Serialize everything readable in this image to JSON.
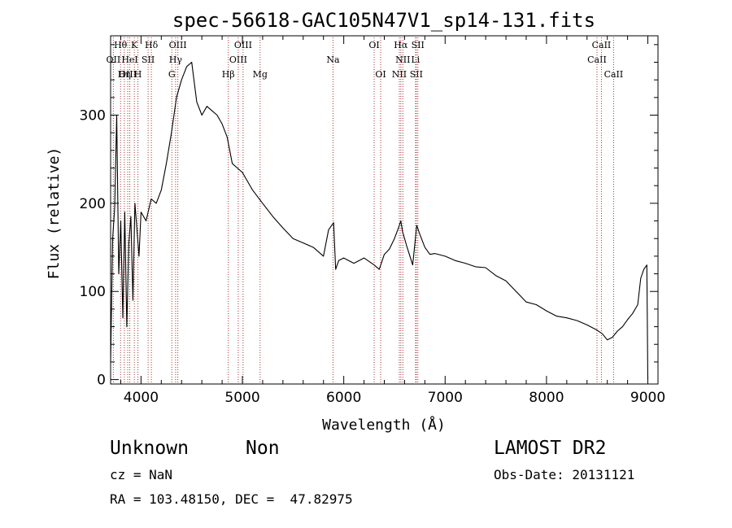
{
  "header": {
    "title": "spec-56618-GAC105N47V1_sp14-131.fits"
  },
  "chart_data": {
    "type": "line",
    "title": "spec-56618-GAC105N47V1_sp14-131.fits",
    "xlabel": "Wavelength (Å)",
    "ylabel": "Flux (relative)",
    "xlim": [
      3700,
      9100
    ],
    "ylim": [
      -5,
      390
    ],
    "x_ticks": [
      4000,
      5000,
      6000,
      7000,
      8000,
      9000
    ],
    "y_ticks": [
      0,
      100,
      200,
      300
    ],
    "grid": false,
    "series": [
      {
        "x": [
          3700,
          3720,
          3740,
          3760,
          3780,
          3800,
          3820,
          3840,
          3860,
          3880,
          3900,
          3920,
          3940,
          3960,
          3980,
          4000,
          4050,
          4100,
          4150,
          4200,
          4250,
          4300,
          4350,
          4400,
          4450,
          4500,
          4550,
          4600,
          4650,
          4700,
          4750,
          4800,
          4850,
          4900,
          4950,
          5000,
          5100,
          5200,
          5300,
          5400,
          5500,
          5600,
          5700,
          5800,
          5850,
          5900,
          5920,
          5950,
          6000,
          6100,
          6200,
          6300,
          6350,
          6400,
          6450,
          6500,
          6540,
          6563,
          6580,
          6620,
          6680,
          6720,
          6750,
          6800,
          6850,
          6900,
          7000,
          7100,
          7200,
          7300,
          7400,
          7500,
          7600,
          7700,
          7800,
          7900,
          8000,
          8100,
          8200,
          8300,
          8400,
          8500,
          8550,
          8600,
          8650,
          8700,
          8750,
          8800,
          8850,
          8900,
          8930,
          8960,
          8990,
          9000
        ],
        "y": [
          20,
          160,
          195,
          300,
          120,
          180,
          70,
          190,
          60,
          155,
          185,
          90,
          200,
          170,
          140,
          190,
          180,
          205,
          200,
          215,
          245,
          280,
          320,
          340,
          355,
          360,
          315,
          300,
          310,
          305,
          300,
          290,
          275,
          245,
          240,
          235,
          215,
          200,
          185,
          172,
          160,
          155,
          150,
          140,
          170,
          178,
          125,
          135,
          138,
          132,
          138,
          130,
          125,
          142,
          148,
          160,
          172,
          180,
          168,
          152,
          130,
          175,
          165,
          150,
          142,
          143,
          140,
          135,
          132,
          128,
          127,
          118,
          112,
          100,
          88,
          85,
          78,
          72,
          70,
          67,
          62,
          56,
          52,
          45,
          48,
          55,
          60,
          68,
          75,
          85,
          115,
          125,
          130,
          0
        ]
      }
    ],
    "lines": [
      {
        "label": "Hθ",
        "x": 3798,
        "row": 0
      },
      {
        "label": "OII",
        "x": 3727,
        "row": 1
      },
      {
        "label": "OIII",
        "x": 3869,
        "row": 2
      },
      {
        "label": "Hη",
        "x": 3835,
        "row": 2
      },
      {
        "label": "K",
        "x": 3934,
        "row": 0
      },
      {
        "label": "H",
        "x": 3969,
        "row": 2
      },
      {
        "label": "HeI",
        "x": 3889,
        "row": 1
      },
      {
        "label": "SII",
        "x": 4070,
        "row": 1
      },
      {
        "label": "Hδ",
        "x": 4102,
        "row": 0
      },
      {
        "label": "G",
        "x": 4304,
        "row": 2
      },
      {
        "label": "Hγ",
        "x": 4341,
        "row": 1
      },
      {
        "label": "OIII",
        "x": 4363,
        "row": 0
      },
      {
        "label": "Hβ",
        "x": 4861,
        "row": 2
      },
      {
        "label": "OIII",
        "x": 4959,
        "row": 1
      },
      {
        "label": "OIII",
        "x": 5007,
        "row": 0
      },
      {
        "label": "Mg",
        "x": 5175,
        "row": 2
      },
      {
        "label": "Na",
        "x": 5894,
        "row": 1
      },
      {
        "label": "OI",
        "x": 6300,
        "row": 0
      },
      {
        "label": "OI",
        "x": 6364,
        "row": 2
      },
      {
        "label": "NII",
        "x": 6548,
        "row": 2
      },
      {
        "label": "Hα",
        "x": 6563,
        "row": 0
      },
      {
        "label": "NII",
        "x": 6583,
        "row": 1
      },
      {
        "label": "Li",
        "x": 6708,
        "row": 1
      },
      {
        "label": "SII",
        "x": 6716,
        "row": 2
      },
      {
        "label": "SII",
        "x": 6731,
        "row": 0
      },
      {
        "label": "CaII",
        "x": 8498,
        "row": 1
      },
      {
        "label": "CaII",
        "x": 8542,
        "row": 0
      },
      {
        "label": "CaII",
        "x": 8662,
        "row": 2
      }
    ]
  },
  "info": {
    "class": "Unknown",
    "subclass": "Non",
    "survey": "LAMOST DR2",
    "cz": "cz = NaN",
    "obs_date": "Obs-Date: 20131121",
    "radec": "RA = 103.48150, DEC =  47.82975"
  }
}
